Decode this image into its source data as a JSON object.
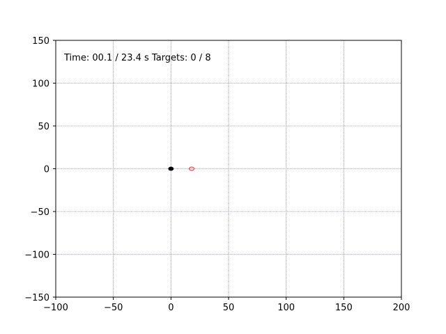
{
  "status": {
    "time_label": "Time:",
    "time_current": "00.1",
    "time_total": "23.4 s",
    "targets_label": "Targets:",
    "targets_hit": "0",
    "targets_total": "8",
    "text": "Time: 00.1 / 23.4 s   Targets: 0 / 8"
  },
  "chart_data": {
    "type": "scatter",
    "title": "",
    "xlabel": "",
    "ylabel": "",
    "xlim": [
      -100,
      200
    ],
    "ylim": [
      -150,
      150
    ],
    "grid": true,
    "xticks": [
      -100,
      -50,
      0,
      50,
      100,
      150,
      200
    ],
    "xtick_labels": [
      "−100",
      "−50",
      "0",
      "50",
      "100",
      "150",
      "200"
    ],
    "yticks": [
      -150,
      -100,
      -50,
      0,
      50,
      100,
      150
    ],
    "ytick_labels": [
      "−150",
      "−100",
      "−50",
      "0",
      "50",
      "100",
      "150"
    ],
    "series": [
      {
        "marker": "filled-ellipse",
        "color": "#000000",
        "x": [
          0
        ],
        "y": [
          0
        ]
      },
      {
        "marker": "hollow-ellipse",
        "color": "#d62728",
        "x": [
          18
        ],
        "y": [
          0
        ]
      }
    ],
    "colors": {
      "grid": "#a8a8b8",
      "axes": "#000000",
      "background": "#ffffff"
    }
  }
}
